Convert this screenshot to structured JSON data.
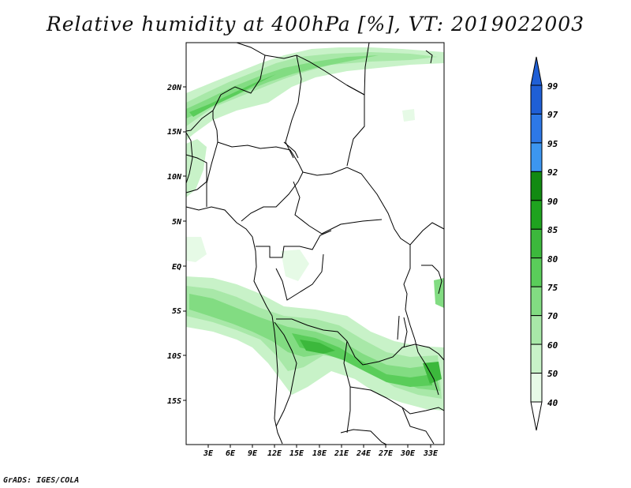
{
  "title": "Relative humidity at 400hPa [%], VT: 2019022003",
  "credit": "GrADS: IGES/COLA",
  "map": {
    "lon_labels": [
      "3E",
      "6E",
      "9E",
      "12E",
      "15E",
      "18E",
      "21E",
      "24E",
      "27E",
      "30E",
      "33E"
    ],
    "lat_labels": [
      "20N",
      "15N",
      "10N",
      "5N",
      "EQ",
      "5S",
      "10S",
      "15S"
    ]
  },
  "colorbar": {
    "labels": [
      "99",
      "97",
      "95",
      "92",
      "90",
      "85",
      "80",
      "75",
      "70",
      "60",
      "50",
      "40"
    ],
    "colors": [
      "#1f5fd6",
      "#2d78e6",
      "#3c96f0",
      "#128a12",
      "#1fa31f",
      "#3cb83c",
      "#5acd5a",
      "#82dc82",
      "#a8e8a8",
      "#c8f2c8",
      "#e6fae6"
    ]
  }
}
